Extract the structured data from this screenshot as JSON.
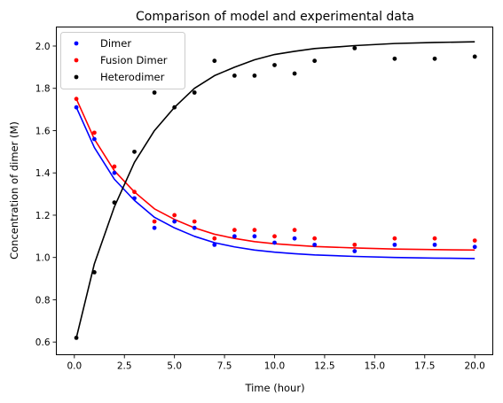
{
  "chart_data": {
    "type": "scatter",
    "title": "Comparison of model and experimental data",
    "xlabel": "Time (hour)",
    "ylabel": "Concentration of dimer (M)",
    "xlim": [
      -0.9,
      20.9
    ],
    "ylim": [
      0.54,
      2.09
    ],
    "xticks": [
      0.0,
      2.5,
      5.0,
      7.5,
      10.0,
      12.5,
      15.0,
      17.5,
      20.0
    ],
    "xtick_labels": [
      "0.0",
      "2.5",
      "5.0",
      "7.5",
      "10.0",
      "12.5",
      "15.0",
      "17.5",
      "20.0"
    ],
    "yticks": [
      0.6,
      0.8,
      1.0,
      1.2,
      1.4,
      1.6,
      1.8,
      2.0
    ],
    "ytick_labels": [
      "0.6",
      "0.8",
      "1.0",
      "1.2",
      "1.4",
      "1.6",
      "1.8",
      "2.0"
    ],
    "grid": false,
    "legend_position": "top-left",
    "series": [
      {
        "name": "Dimer",
        "color": "#0000ff",
        "points": [
          [
            0.1,
            1.71
          ],
          [
            1,
            1.56
          ],
          [
            2,
            1.4
          ],
          [
            3,
            1.28
          ],
          [
            4,
            1.14
          ],
          [
            5,
            1.17
          ],
          [
            6,
            1.14
          ],
          [
            7,
            1.06
          ],
          [
            8,
            1.1
          ],
          [
            9,
            1.1
          ],
          [
            10,
            1.07
          ],
          [
            11,
            1.09
          ],
          [
            12,
            1.06
          ],
          [
            14,
            1.03
          ],
          [
            16,
            1.06
          ],
          [
            18,
            1.06
          ],
          [
            20,
            1.05
          ]
        ]
      },
      {
        "name": "Fusion Dimer",
        "color": "#ff0000",
        "points": [
          [
            0.1,
            1.75
          ],
          [
            1,
            1.59
          ],
          [
            2,
            1.43
          ],
          [
            3,
            1.31
          ],
          [
            4,
            1.17
          ],
          [
            5,
            1.2
          ],
          [
            6,
            1.17
          ],
          [
            7,
            1.09
          ],
          [
            8,
            1.13
          ],
          [
            9,
            1.13
          ],
          [
            10,
            1.1
          ],
          [
            11,
            1.13
          ],
          [
            12,
            1.09
          ],
          [
            14,
            1.06
          ],
          [
            16,
            1.09
          ],
          [
            18,
            1.09
          ],
          [
            20,
            1.08
          ]
        ]
      },
      {
        "name": "Heterodimer",
        "color": "#000000",
        "points": [
          [
            0.1,
            0.62
          ],
          [
            1,
            0.93
          ],
          [
            2,
            1.26
          ],
          [
            3,
            1.5
          ],
          [
            4,
            1.78
          ],
          [
            5,
            1.71
          ],
          [
            6,
            1.78
          ],
          [
            7,
            1.93
          ],
          [
            8,
            1.86
          ],
          [
            9,
            1.86
          ],
          [
            10,
            1.91
          ],
          [
            11,
            1.87
          ],
          [
            12,
            1.93
          ],
          [
            14,
            1.99
          ],
          [
            16,
            1.94
          ],
          [
            18,
            1.94
          ],
          [
            20,
            1.95
          ]
        ]
      }
    ],
    "model_curves": [
      {
        "color": "#0000ff",
        "points": [
          [
            0.1,
            1.71
          ],
          [
            1,
            1.52
          ],
          [
            2,
            1.37
          ],
          [
            3,
            1.27
          ],
          [
            4,
            1.19
          ],
          [
            5,
            1.14
          ],
          [
            6,
            1.1
          ],
          [
            7,
            1.07
          ],
          [
            8,
            1.05
          ],
          [
            9,
            1.035
          ],
          [
            10,
            1.025
          ],
          [
            11,
            1.018
          ],
          [
            12,
            1.012
          ],
          [
            14,
            1.005
          ],
          [
            16,
            1.0
          ],
          [
            18,
            0.997
          ],
          [
            20,
            0.995
          ]
        ]
      },
      {
        "color": "#ff0000",
        "points": [
          [
            0.1,
            1.75
          ],
          [
            1,
            1.56
          ],
          [
            2,
            1.41
          ],
          [
            3,
            1.31
          ],
          [
            4,
            1.23
          ],
          [
            5,
            1.18
          ],
          [
            6,
            1.14
          ],
          [
            7,
            1.11
          ],
          [
            8,
            1.09
          ],
          [
            9,
            1.075
          ],
          [
            10,
            1.065
          ],
          [
            11,
            1.058
          ],
          [
            12,
            1.052
          ],
          [
            14,
            1.045
          ],
          [
            16,
            1.04
          ],
          [
            18,
            1.037
          ],
          [
            20,
            1.035
          ]
        ]
      },
      {
        "color": "#000000",
        "points": [
          [
            0.1,
            0.62
          ],
          [
            1,
            0.97
          ],
          [
            2,
            1.24
          ],
          [
            3,
            1.45
          ],
          [
            4,
            1.6
          ],
          [
            5,
            1.71
          ],
          [
            6,
            1.8
          ],
          [
            7,
            1.86
          ],
          [
            8,
            1.9
          ],
          [
            9,
            1.935
          ],
          [
            10,
            1.96
          ],
          [
            11,
            1.975
          ],
          [
            12,
            1.988
          ],
          [
            14,
            2.002
          ],
          [
            16,
            2.012
          ],
          [
            18,
            2.017
          ],
          [
            20,
            2.02
          ]
        ]
      }
    ]
  }
}
